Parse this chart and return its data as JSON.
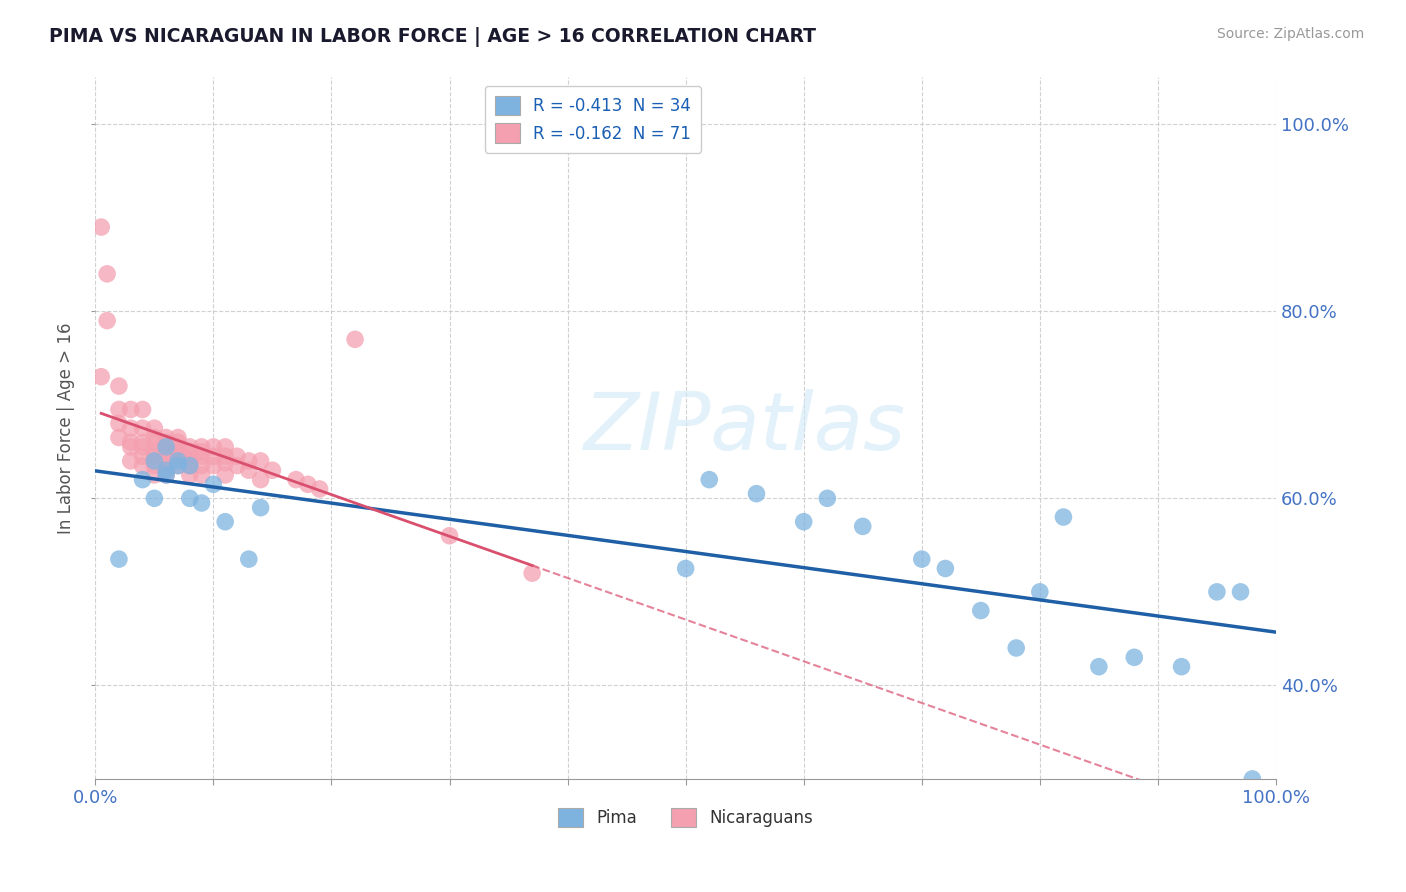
{
  "title": "PIMA VS NICARAGUAN IN LABOR FORCE | AGE > 16 CORRELATION CHART",
  "source_text": "Source: ZipAtlas.com",
  "ylabel_label": "In Labor Force | Age > 16",
  "xlim": [
    0.0,
    1.0
  ],
  "ylim": [
    0.3,
    1.05
  ],
  "blue_color": "#7eb3e0",
  "pink_color": "#f4a0b0",
  "blue_line_color": "#1f5fa6",
  "pink_line_color": "#d94f6e",
  "legend_blue_label": "R = -0.413  N = 34",
  "legend_pink_label": "R = -0.162  N = 71",
  "watermark": "ZIPatlas",
  "blue_x": [
    0.02,
    0.04,
    0.05,
    0.05,
    0.06,
    0.06,
    0.06,
    0.07,
    0.07,
    0.08,
    0.08,
    0.09,
    0.1,
    0.11,
    0.13,
    0.14,
    0.5,
    0.52,
    0.56,
    0.6,
    0.62,
    0.65,
    0.7,
    0.72,
    0.75,
    0.78,
    0.8,
    0.82,
    0.85,
    0.88,
    0.92,
    0.95,
    0.97,
    0.98
  ],
  "blue_y": [
    0.535,
    0.62,
    0.64,
    0.6,
    0.63,
    0.655,
    0.625,
    0.635,
    0.64,
    0.635,
    0.6,
    0.595,
    0.615,
    0.575,
    0.535,
    0.59,
    0.525,
    0.62,
    0.605,
    0.575,
    0.6,
    0.57,
    0.535,
    0.525,
    0.48,
    0.44,
    0.5,
    0.58,
    0.42,
    0.43,
    0.42,
    0.5,
    0.5,
    0.3
  ],
  "pink_x": [
    0.005,
    0.005,
    0.01,
    0.01,
    0.02,
    0.02,
    0.02,
    0.02,
    0.03,
    0.03,
    0.03,
    0.03,
    0.03,
    0.04,
    0.04,
    0.04,
    0.04,
    0.04,
    0.04,
    0.05,
    0.05,
    0.05,
    0.05,
    0.05,
    0.05,
    0.05,
    0.06,
    0.06,
    0.06,
    0.06,
    0.06,
    0.06,
    0.06,
    0.06,
    0.07,
    0.07,
    0.07,
    0.07,
    0.07,
    0.07,
    0.08,
    0.08,
    0.08,
    0.08,
    0.08,
    0.08,
    0.09,
    0.09,
    0.09,
    0.09,
    0.09,
    0.1,
    0.1,
    0.1,
    0.11,
    0.11,
    0.11,
    0.11,
    0.12,
    0.12,
    0.13,
    0.13,
    0.14,
    0.14,
    0.15,
    0.17,
    0.18,
    0.19,
    0.22,
    0.3,
    0.37
  ],
  "pink_y": [
    0.89,
    0.73,
    0.84,
    0.79,
    0.72,
    0.695,
    0.68,
    0.665,
    0.695,
    0.675,
    0.66,
    0.655,
    0.64,
    0.695,
    0.675,
    0.66,
    0.655,
    0.645,
    0.635,
    0.675,
    0.665,
    0.66,
    0.65,
    0.645,
    0.635,
    0.625,
    0.665,
    0.66,
    0.655,
    0.65,
    0.645,
    0.64,
    0.635,
    0.625,
    0.665,
    0.66,
    0.655,
    0.65,
    0.645,
    0.635,
    0.655,
    0.65,
    0.645,
    0.64,
    0.635,
    0.625,
    0.655,
    0.65,
    0.645,
    0.635,
    0.625,
    0.655,
    0.645,
    0.635,
    0.655,
    0.645,
    0.638,
    0.625,
    0.645,
    0.635,
    0.64,
    0.63,
    0.64,
    0.62,
    0.63,
    0.62,
    0.615,
    0.61,
    0.77,
    0.56,
    0.52
  ]
}
